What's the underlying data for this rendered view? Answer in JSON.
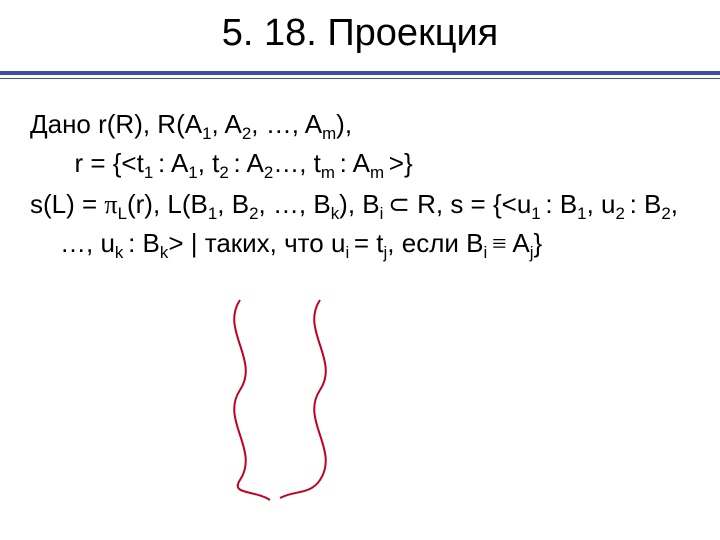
{
  "title": "5. 18. Проекция",
  "body": {
    "line1_prefix": "Дано r(R), R(A",
    "line1_sub1": "1",
    "line1_mid1": ", A",
    "line1_sub2": "2",
    "line1_mid2": ", …, A",
    "line1_sub3": "m",
    "line1_end": "),",
    "line2_prefix": "r = {<t",
    "line2_sub1": "1 ",
    "line2_mid1": ": A",
    "line2_sub2": "1",
    "line2_mid2": ", t",
    "line2_sub3": "2 ",
    "line2_mid3": ": A",
    "line2_sub4": "2",
    "line2_mid4": "…, t",
    "line2_sub5": "m ",
    "line2_mid5": ": A",
    "line2_sub6": "m ",
    "line2_end": ">}",
    "line3_prefix": "s(L) = ",
    "line3_pi": "π",
    "line3_sub1": "L",
    "line3_mid1": "(r), L(B",
    "line3_sub2": "1",
    "line3_mid2": ", B",
    "line3_sub3": "2",
    "line3_mid3": ", …, B",
    "line3_sub4": "k",
    "line3_mid4": "), B",
    "line3_sub5": "i ",
    "line3_subset": "⊂",
    "line3_mid5": " R, s = {<u",
    "line3_sub6": "1 ",
    "line3_mid6": ": B",
    "line3_sub7": "1",
    "line3_mid7": ", u",
    "line3_sub8": "2 ",
    "line3_mid8": ": B",
    "line3_sub9": "2",
    "line3_mid9": ", …, u",
    "line3_sub10": "k ",
    "line3_mid10": ": B",
    "line3_sub11": "k",
    "line3_mid11": "> | таких, что u",
    "line3_sub12": "i ",
    "line3_mid12": "= t",
    "line3_sub13": "j",
    "line3_mid13": ", если B",
    "line3_sub14": "i ",
    "line3_equiv": "≡",
    "line3_mid14": " A",
    "line3_sub15": "j",
    "line3_end": "}"
  },
  "colors": {
    "title_color": "#000000",
    "underline_color": "#3b4fa4",
    "text_color": "#000000",
    "wiggle_color": "#c00020",
    "background": "#ffffff"
  },
  "wiggles": {
    "stroke_width": 2,
    "paths": [
      "M 40 10 C 20 40, 60 70, 40 100 C 20 130, 60 160, 40 190 C 30 205, 55 200, 70 210",
      "M 120 10 C 100 40, 140 70, 120 100 C 100 130, 140 160, 120 190 C 110 205, 95 200, 80 208"
    ]
  }
}
